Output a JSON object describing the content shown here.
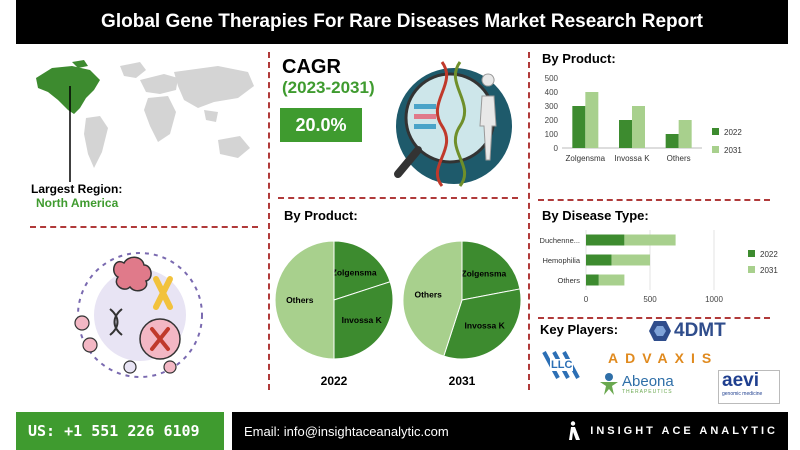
{
  "header": {
    "title": "Global Gene Therapies For Rare Diseases Market Research Report"
  },
  "region": {
    "label": "Largest Region:",
    "value": "North America"
  },
  "cagr": {
    "title": "CAGR",
    "period": "(2023-2031)",
    "value": "20.0%"
  },
  "by_product_pies": {
    "title": "By Product:"
  },
  "by_product_bar": {
    "title": "By Product:"
  },
  "by_disease": {
    "title": "By Disease Type:"
  },
  "key_players": {
    "title": "Key Players:",
    "logos": [
      "4DMT",
      "ADVAXIS",
      "LLC",
      "Abeona",
      "THERAPEUTICS",
      "aevi",
      "genomic medicine"
    ]
  },
  "footer": {
    "phone": "US: +1 551 226 6109",
    "email": "Email: info@insightaceanalytic.com",
    "brand": "INSIGHT ACE ANALYTIC"
  },
  "colors": {
    "dark_green": "#3d8b2f",
    "light_green": "#a8d08d",
    "accent_red": "#b03a3a",
    "brand_green": "#3f9b2f"
  },
  "chart_data": [
    {
      "type": "bar",
      "title": "By Product:",
      "categories": [
        "Zolgensma",
        "Invossa K",
        "Others"
      ],
      "series": [
        {
          "name": "2022",
          "values": [
            300,
            200,
            100
          ],
          "color": "#3d8b2f"
        },
        {
          "name": "2031",
          "values": [
            400,
            300,
            200
          ],
          "color": "#a8d08d"
        }
      ],
      "ylim": [
        0,
        500
      ],
      "yticks": [
        0,
        100,
        200,
        300,
        400,
        500
      ],
      "legend": "right"
    },
    {
      "type": "bar",
      "orientation": "horizontal",
      "stacked": true,
      "title": "By Disease Type:",
      "categories": [
        "Duchenne...",
        "Hemophilia",
        "Others"
      ],
      "series": [
        {
          "name": "2022",
          "values": [
            300,
            200,
            100
          ],
          "color": "#3d8b2f"
        },
        {
          "name": "2031",
          "values": [
            400,
            300,
            200
          ],
          "color": "#a8d08d"
        }
      ],
      "xlim": [
        0,
        1000
      ],
      "xticks": [
        0,
        500,
        1000
      ],
      "legend": "right"
    },
    {
      "type": "pie",
      "title": "2022",
      "labels": [
        "Zolgensma",
        "Invossa K",
        "Others"
      ],
      "values": [
        20,
        30,
        50
      ],
      "colors": [
        "#3d8b2f",
        "#3d8b2f",
        "#a8d08d"
      ]
    },
    {
      "type": "pie",
      "title": "2031",
      "labels": [
        "Zolgensma",
        "Invossa K",
        "Others"
      ],
      "values": [
        22,
        33,
        45
      ],
      "colors": [
        "#3d8b2f",
        "#3d8b2f",
        "#a8d08d"
      ]
    }
  ]
}
